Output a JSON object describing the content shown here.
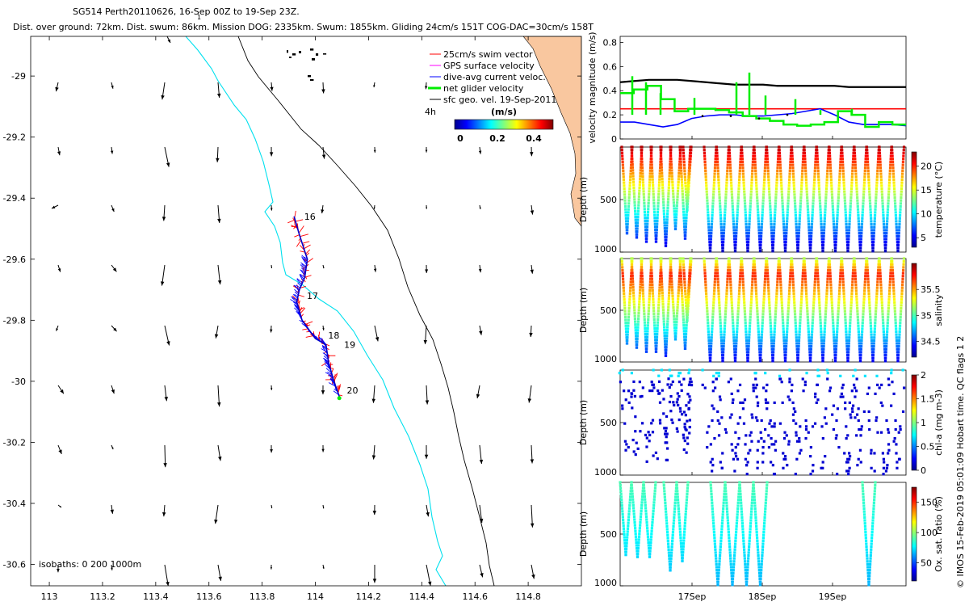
{
  "chart_data": {
    "type": "scatter",
    "title": {
      "line1": "SG514 Perth20110626, 16-Sep 00Z to 19-Sep 23Z.",
      "line2": "Dist. over ground: 72km. Dist. swum: 86km. Mission DOG: 2335km. Swum: 1855km. Gliding 24cm/s 151T COG-DAC=30cm/s 158T",
      "tick_mark": "1"
    },
    "map": {
      "x_ticks": [
        "113",
        "113.2",
        "113.4",
        "113.6",
        "113.8",
        "114",
        "114.2",
        "114.4",
        "114.6",
        "114.8"
      ],
      "y_ticks": [
        "-29",
        "-29.2",
        "-29.4",
        "-29.6",
        "-29.8",
        "-30",
        "-30.2",
        "-30.4",
        "-30.6"
      ],
      "xlim": [
        112.93,
        115.0
      ],
      "ylim": [
        -30.67,
        -28.87
      ],
      "legend": [
        {
          "label": "25cm/s swim vector",
          "color": "#ff0000"
        },
        {
          "label": "GPS surface velocity",
          "color": "#ff00ff"
        },
        {
          "label": "dive-avg current veloc.",
          "color": "#0000ff"
        },
        {
          "label": "net glider velocity",
          "color": "#00dd00"
        },
        {
          "label": "sfc geo. vel. 19-Sep-2011",
          "color": "#000000"
        }
      ],
      "colorbar": {
        "label": "4h",
        "units": "(m/s)",
        "ticks": [
          "0",
          "0.2",
          "0.4"
        ]
      },
      "isobaths": "isobaths: 0   200  1000m",
      "day_labels": [
        {
          "text": "16",
          "lon": 113.94,
          "lat": -29.46
        },
        {
          "text": "17",
          "lon": 113.95,
          "lat": -29.72
        },
        {
          "text": "18",
          "lon": 114.03,
          "lat": -29.85
        },
        {
          "text": "19",
          "lon": 114.09,
          "lat": -29.88
        },
        {
          "text": "20",
          "lon": 114.1,
          "lat": -30.03
        }
      ],
      "track": [
        [
          113.92,
          -29.46
        ],
        [
          113.94,
          -29.52
        ],
        [
          113.97,
          -29.6
        ],
        [
          113.96,
          -29.66
        ],
        [
          113.94,
          -29.7
        ],
        [
          113.93,
          -29.74
        ],
        [
          113.95,
          -29.8
        ],
        [
          114.0,
          -29.86
        ],
        [
          114.04,
          -29.88
        ],
        [
          114.05,
          -29.94
        ],
        [
          114.07,
          -30.0
        ],
        [
          114.09,
          -30.05
        ]
      ],
      "geo_vectors_note": "sfc geo. vel. 19-Sep-2011 (grid of black arrows)"
    },
    "panels": [
      {
        "ylabel": "velocity magnitude (m/s)",
        "y_ticks": [
          "0",
          "0.2",
          "0.4",
          "0.6",
          "0.8"
        ],
        "ylim": [
          0,
          0.85
        ],
        "series": [
          {
            "name": "black",
            "color": "#000000",
            "values": [
              0.47,
              0.48,
              0.49,
              0.49,
              0.49,
              0.48,
              0.47,
              0.46,
              0.45,
              0.45,
              0.45,
              0.44,
              0.44,
              0.44,
              0.44,
              0.44,
              0.43,
              0.43,
              0.43,
              0.43,
              0.43
            ]
          },
          {
            "name": "red",
            "color": "#ff0000",
            "values": [
              0.25,
              0.25,
              0.25,
              0.25,
              0.25,
              0.25,
              0.25,
              0.25,
              0.25,
              0.25,
              0.25,
              0.25,
              0.25,
              0.25,
              0.25,
              0.25,
              0.25,
              0.25,
              0.25,
              0.25,
              0.25
            ]
          },
          {
            "name": "blue",
            "color": "#0000ff",
            "values": [
              0.14,
              0.14,
              0.12,
              0.1,
              0.12,
              0.17,
              0.19,
              0.2,
              0.2,
              0.19,
              0.19,
              0.2,
              0.21,
              0.23,
              0.25,
              0.2,
              0.14,
              0.12,
              0.12,
              0.12,
              0.11
            ]
          },
          {
            "name": "green",
            "color": "#00ee00",
            "values": [
              0.38,
              0.41,
              0.44,
              0.33,
              0.23,
              0.25,
              0.25,
              0.24,
              0.22,
              0.19,
              0.17,
              0.15,
              0.12,
              0.11,
              0.12,
              0.14,
              0.23,
              0.2,
              0.1,
              0.14,
              0.12
            ]
          }
        ]
      },
      {
        "ylabel": "Depth (m)",
        "y_ticks": [
          "500",
          "1000"
        ],
        "ylim": [
          0,
          1000
        ],
        "cbar_label": "temperature (°C)",
        "cbar_ticks": [
          "5",
          "10",
          "15",
          "20"
        ],
        "cbar_range": [
          3,
          23
        ]
      },
      {
        "ylabel": "Depth (m)",
        "y_ticks": [
          "500",
          "1000"
        ],
        "ylim": [
          0,
          1000
        ],
        "cbar_label": "salinity",
        "cbar_ticks": [
          "34.5",
          "35",
          "35.5"
        ],
        "cbar_range": [
          34.2,
          36.0
        ]
      },
      {
        "ylabel": "Depth (m)",
        "y_ticks": [
          "500",
          "1000"
        ],
        "ylim": [
          0,
          1000
        ],
        "cbar_label": "chl-a (mg m-3)",
        "cbar_ticks": [
          "0",
          "0.5",
          "1",
          "1.5",
          "2"
        ],
        "cbar_range": [
          0,
          2
        ]
      },
      {
        "ylabel": "Depth (m)",
        "y_ticks": [
          "500",
          "1000"
        ],
        "ylim": [
          0,
          1000
        ],
        "cbar_label": "Ox. sat. ratio (%)",
        "cbar_ticks": [
          "50",
          "100",
          "150"
        ],
        "cbar_range": [
          20,
          175
        ]
      }
    ],
    "time_ticks": [
      "17Sep",
      "18Sep",
      "19Sep"
    ],
    "credit": "© IMOS 15-Feb-2019 05:01:09 Hobart time. QC flags 1  2"
  }
}
